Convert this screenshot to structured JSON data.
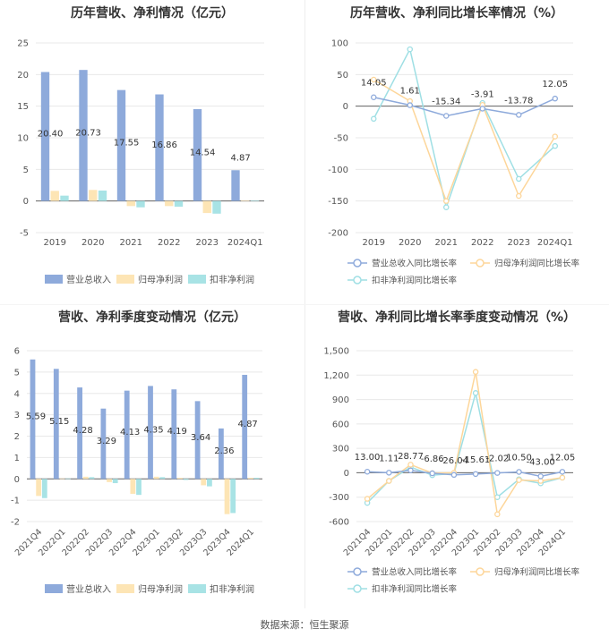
{
  "footer": "数据来源：恒生聚源",
  "colors": {
    "revenue": "#8eaadb",
    "net_profit": "#fde5b5",
    "deducted": "#a8e3e5",
    "growth_revenue": "#8eaadb",
    "growth_net": "#fdd69a",
    "growth_deducted": "#9fdfe4",
    "grid": "#e8e8e8",
    "axis": "#666666"
  },
  "chart_data": [
    {
      "type": "bar",
      "title": "历年营收、净利情况（亿元）",
      "categories": [
        "2019",
        "2020",
        "2021",
        "2022",
        "2023",
        "2024Q1"
      ],
      "ylim": [
        -5,
        25
      ],
      "yticks": [
        -5,
        0,
        5,
        10,
        15,
        20,
        25
      ],
      "series": [
        {
          "name": "营业总收入",
          "values": [
            20.4,
            20.73,
            17.55,
            16.86,
            14.54,
            4.87
          ],
          "labels": [
            "20.40",
            "20.73",
            "17.55",
            "16.86",
            "14.54",
            "4.87"
          ]
        },
        {
          "name": "归母净利润",
          "values": [
            1.6,
            1.75,
            -0.8,
            -0.8,
            -1.9,
            0.05
          ]
        },
        {
          "name": "扣非净利润",
          "values": [
            0.85,
            1.65,
            -1.0,
            -0.9,
            -2.0,
            0.05
          ]
        }
      ],
      "legend": "bottom",
      "grid": true
    },
    {
      "type": "line",
      "title": "历年营收、净利同比增长率情况（%）",
      "categories": [
        "2019",
        "2020",
        "2021",
        "2022",
        "2023",
        "2024Q1"
      ],
      "ylim": [
        -200,
        100
      ],
      "yticks": [
        -200,
        -150,
        -100,
        -50,
        0,
        50,
        100
      ],
      "series": [
        {
          "name": "营业总收入同比增长率",
          "values": [
            14.05,
            1.61,
            -15.34,
            -3.91,
            -13.78,
            12.05
          ],
          "labels": [
            "14.05",
            "1.61",
            "-15.34",
            "-3.91",
            "-13.78",
            "12.05"
          ]
        },
        {
          "name": "归母净利润同比增长率",
          "values": [
            42,
            8,
            -150,
            2,
            -142,
            -48
          ]
        },
        {
          "name": "扣非净利润同比增长率",
          "values": [
            -20,
            90,
            -160,
            5,
            -115,
            -63
          ]
        }
      ],
      "legend": "bottom",
      "grid": true
    },
    {
      "type": "bar",
      "title": "营收、净利季度变动情况（亿元）",
      "categories": [
        "2021Q4",
        "2022Q1",
        "2022Q2",
        "2022Q3",
        "2022Q4",
        "2023Q1",
        "2023Q2",
        "2023Q3",
        "2023Q4",
        "2024Q1"
      ],
      "ylim": [
        -2,
        6
      ],
      "yticks": [
        -2,
        -1,
        0,
        1,
        2,
        3,
        4,
        5,
        6
      ],
      "series": [
        {
          "name": "营业总收入",
          "values": [
            5.59,
            5.15,
            4.28,
            3.29,
            4.13,
            4.35,
            4.19,
            3.64,
            2.36,
            4.87
          ],
          "labels": [
            "5.59",
            "5.15",
            "4.28",
            "3.29",
            "4.13",
            "4.35",
            "4.19",
            "3.64",
            "2.36",
            "4.87"
          ]
        },
        {
          "name": "归母净利润",
          "values": [
            -0.8,
            0.02,
            0.1,
            -0.15,
            -0.7,
            0.1,
            0.05,
            -0.3,
            -1.65,
            0.05
          ]
        },
        {
          "name": "扣非净利润",
          "values": [
            -0.9,
            0.02,
            0.08,
            -0.2,
            -0.75,
            0.08,
            -0.05,
            -0.35,
            -1.6,
            0.05
          ]
        }
      ],
      "legend": "bottom",
      "grid": true
    },
    {
      "type": "line",
      "title": "营收、净利同比增长率季度变动情况（%）",
      "categories": [
        "2021Q4",
        "2022Q1",
        "2022Q2",
        "2022Q3",
        "2022Q4",
        "2023Q1",
        "2023Q2",
        "2023Q3",
        "2023Q4",
        "2024Q1"
      ],
      "ylim": [
        -600,
        1500
      ],
      "yticks": [
        -600,
        -300,
        0,
        300,
        600,
        900,
        1200,
        1500
      ],
      "ytick_labels": [
        "-600",
        "-300",
        "0",
        "300",
        "600",
        "900",
        "1,200",
        "1,500"
      ],
      "series": [
        {
          "name": "营业总收入同比增长率",
          "values": [
            13.0,
            1.11,
            28.77,
            -6.86,
            -26.04,
            -15.61,
            -2.02,
            10.5,
            -43.0,
            12.05
          ],
          "labels": [
            "13.00",
            "1.11",
            "28.77",
            "-6.86",
            "-26.04",
            "-15.61",
            "-2.02",
            "10.50",
            "-43.00",
            "12.05"
          ]
        },
        {
          "name": "归母净利润同比增长率",
          "values": [
            -320,
            -100,
            100,
            -5,
            0,
            1240,
            -510,
            -90,
            -100,
            -60
          ]
        },
        {
          "name": "扣非净利润同比增长率",
          "values": [
            -370,
            -100,
            70,
            -30,
            -10,
            980,
            -300,
            -80,
            -130,
            -60
          ]
        }
      ],
      "legend": "bottom",
      "grid": true
    }
  ]
}
